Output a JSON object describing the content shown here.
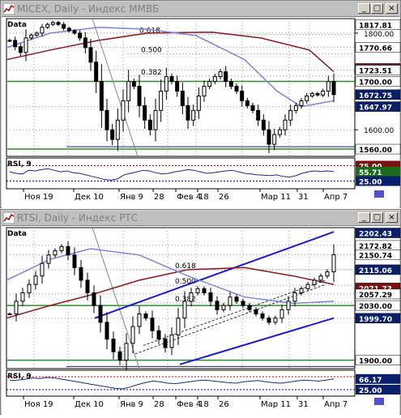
{
  "colors": {
    "axis_label_bg": "#0a1f6b",
    "price_line": "#2e8b2e",
    "ma_red": "#8b1a1a",
    "ma_blue": "#8080e0",
    "channel": "#1a1ad0"
  },
  "windows": [
    {
      "title": "MICEX, Daily - Индекс ММВБ",
      "price_scale": [
        "1817.81",
        "1800.00",
        "1770.66",
        "1724.39",
        "1723.51",
        "1700.00",
        "1672.75",
        "1647.97",
        "1600.00",
        "1560.00"
      ],
      "fib_labels": [
        "0.618",
        "0.500",
        "0.382"
      ],
      "data_label": "Data",
      "rsi_label": "RSI, 9",
      "rsi_scale": [
        "75.00",
        "55.71",
        "25.00"
      ],
      "dates": [
        "Ноя 19",
        "Дек 10",
        "Янв 9",
        "28",
        "Фев 4",
        "18",
        "26",
        "Мар 11",
        "31",
        "Апр 7"
      ]
    },
    {
      "title": "RTSI, Daily - Индекс РТС",
      "price_scale": [
        "2202.43",
        "2172.82",
        "2150.74",
        "2115.06",
        "2071.73",
        "2057.29",
        "2030.00",
        "1999.70",
        "1900.00"
      ],
      "fib_labels": [
        "0.618",
        "0.500",
        "0.382"
      ],
      "data_label": "Data",
      "rsi_label": "RSI, 9",
      "rsi_scale": [
        "66.17",
        "25.00"
      ],
      "dates": [
        "Ноя 19",
        "Дек 10",
        "Янв 9",
        "28",
        "Фев 4",
        "18",
        "26",
        "Мар 11",
        "31",
        "Апр 7"
      ]
    }
  ],
  "chart_data": [
    {
      "type": "line",
      "title": "MICEX, Daily - Индекс ММВБ",
      "ylim": [
        1545,
        1830
      ],
      "horizontal_levels": [
        1700,
        1560
      ],
      "fibonacci": [
        {
          "level": "0.618",
          "value": 1797
        },
        {
          "level": "0.500",
          "value": 1757
        },
        {
          "level": "0.382",
          "value": 1711
        }
      ],
      "closes": [
        1785,
        1772,
        1760,
        1790,
        1796,
        1800,
        1812,
        1818,
        1822,
        1818,
        1810,
        1805,
        1800,
        1790,
        1770,
        1740,
        1700,
        1640,
        1600,
        1580,
        1620,
        1660,
        1700,
        1690,
        1650,
        1620,
        1600,
        1640,
        1680,
        1710,
        1700,
        1680,
        1650,
        1620,
        1640,
        1670,
        1690,
        1700,
        1710,
        1720,
        1700,
        1690,
        1680,
        1660,
        1650,
        1640,
        1620,
        1600,
        1570,
        1590,
        1600,
        1620,
        1640,
        1650,
        1660,
        1670,
        1675,
        1672,
        1680,
        1700,
        1672.75
      ],
      "rsi": [
        55,
        50,
        48,
        60,
        58,
        62,
        65,
        60,
        55,
        58,
        52,
        50,
        45,
        40,
        35,
        30,
        28,
        32,
        45,
        50,
        55,
        60,
        58,
        52,
        48,
        50,
        55,
        58,
        62,
        60,
        55,
        50,
        52,
        55,
        58,
        60,
        55,
        50,
        48,
        45,
        44,
        43,
        45,
        40,
        38,
        42,
        50,
        55,
        58,
        56,
        58,
        55.71
      ]
    },
    {
      "type": "line",
      "title": "RTSI, Daily - Индекс РТС",
      "ylim": [
        1880,
        2215
      ],
      "horizontal_levels": [
        2030,
        1900
      ],
      "fibonacci": [
        {
          "level": "0.618",
          "value": 2115
        },
        {
          "level": "0.500",
          "value": 2078
        },
        {
          "level": "0.382",
          "value": 2036
        }
      ],
      "closes": [
        2010,
        2040,
        2060,
        2080,
        2100,
        2130,
        2150,
        2160,
        2170,
        2150,
        2120,
        2090,
        2060,
        2030,
        1990,
        1950,
        1920,
        1900,
        1940,
        1980,
        2010,
        2000,
        1970,
        1950,
        1930,
        1960,
        2000,
        2040,
        2060,
        2070,
        2060,
        2040,
        2020,
        2030,
        2050,
        2040,
        2030,
        2020,
        2010,
        2000,
        1990,
        2000,
        2020,
        2040,
        2060,
        2070,
        2080,
        2090,
        2100,
        2110,
        2150.74
      ],
      "rsi": [
        60,
        62,
        65,
        70,
        68,
        72,
        70,
        65,
        60,
        55,
        50,
        45,
        40,
        35,
        30,
        28,
        35,
        45,
        52,
        58,
        55,
        50,
        48,
        52,
        56,
        60,
        62,
        58,
        55,
        52,
        50,
        55,
        58,
        60,
        55,
        52,
        50,
        54,
        58,
        62,
        60,
        58,
        62,
        66.17
      ]
    }
  ]
}
